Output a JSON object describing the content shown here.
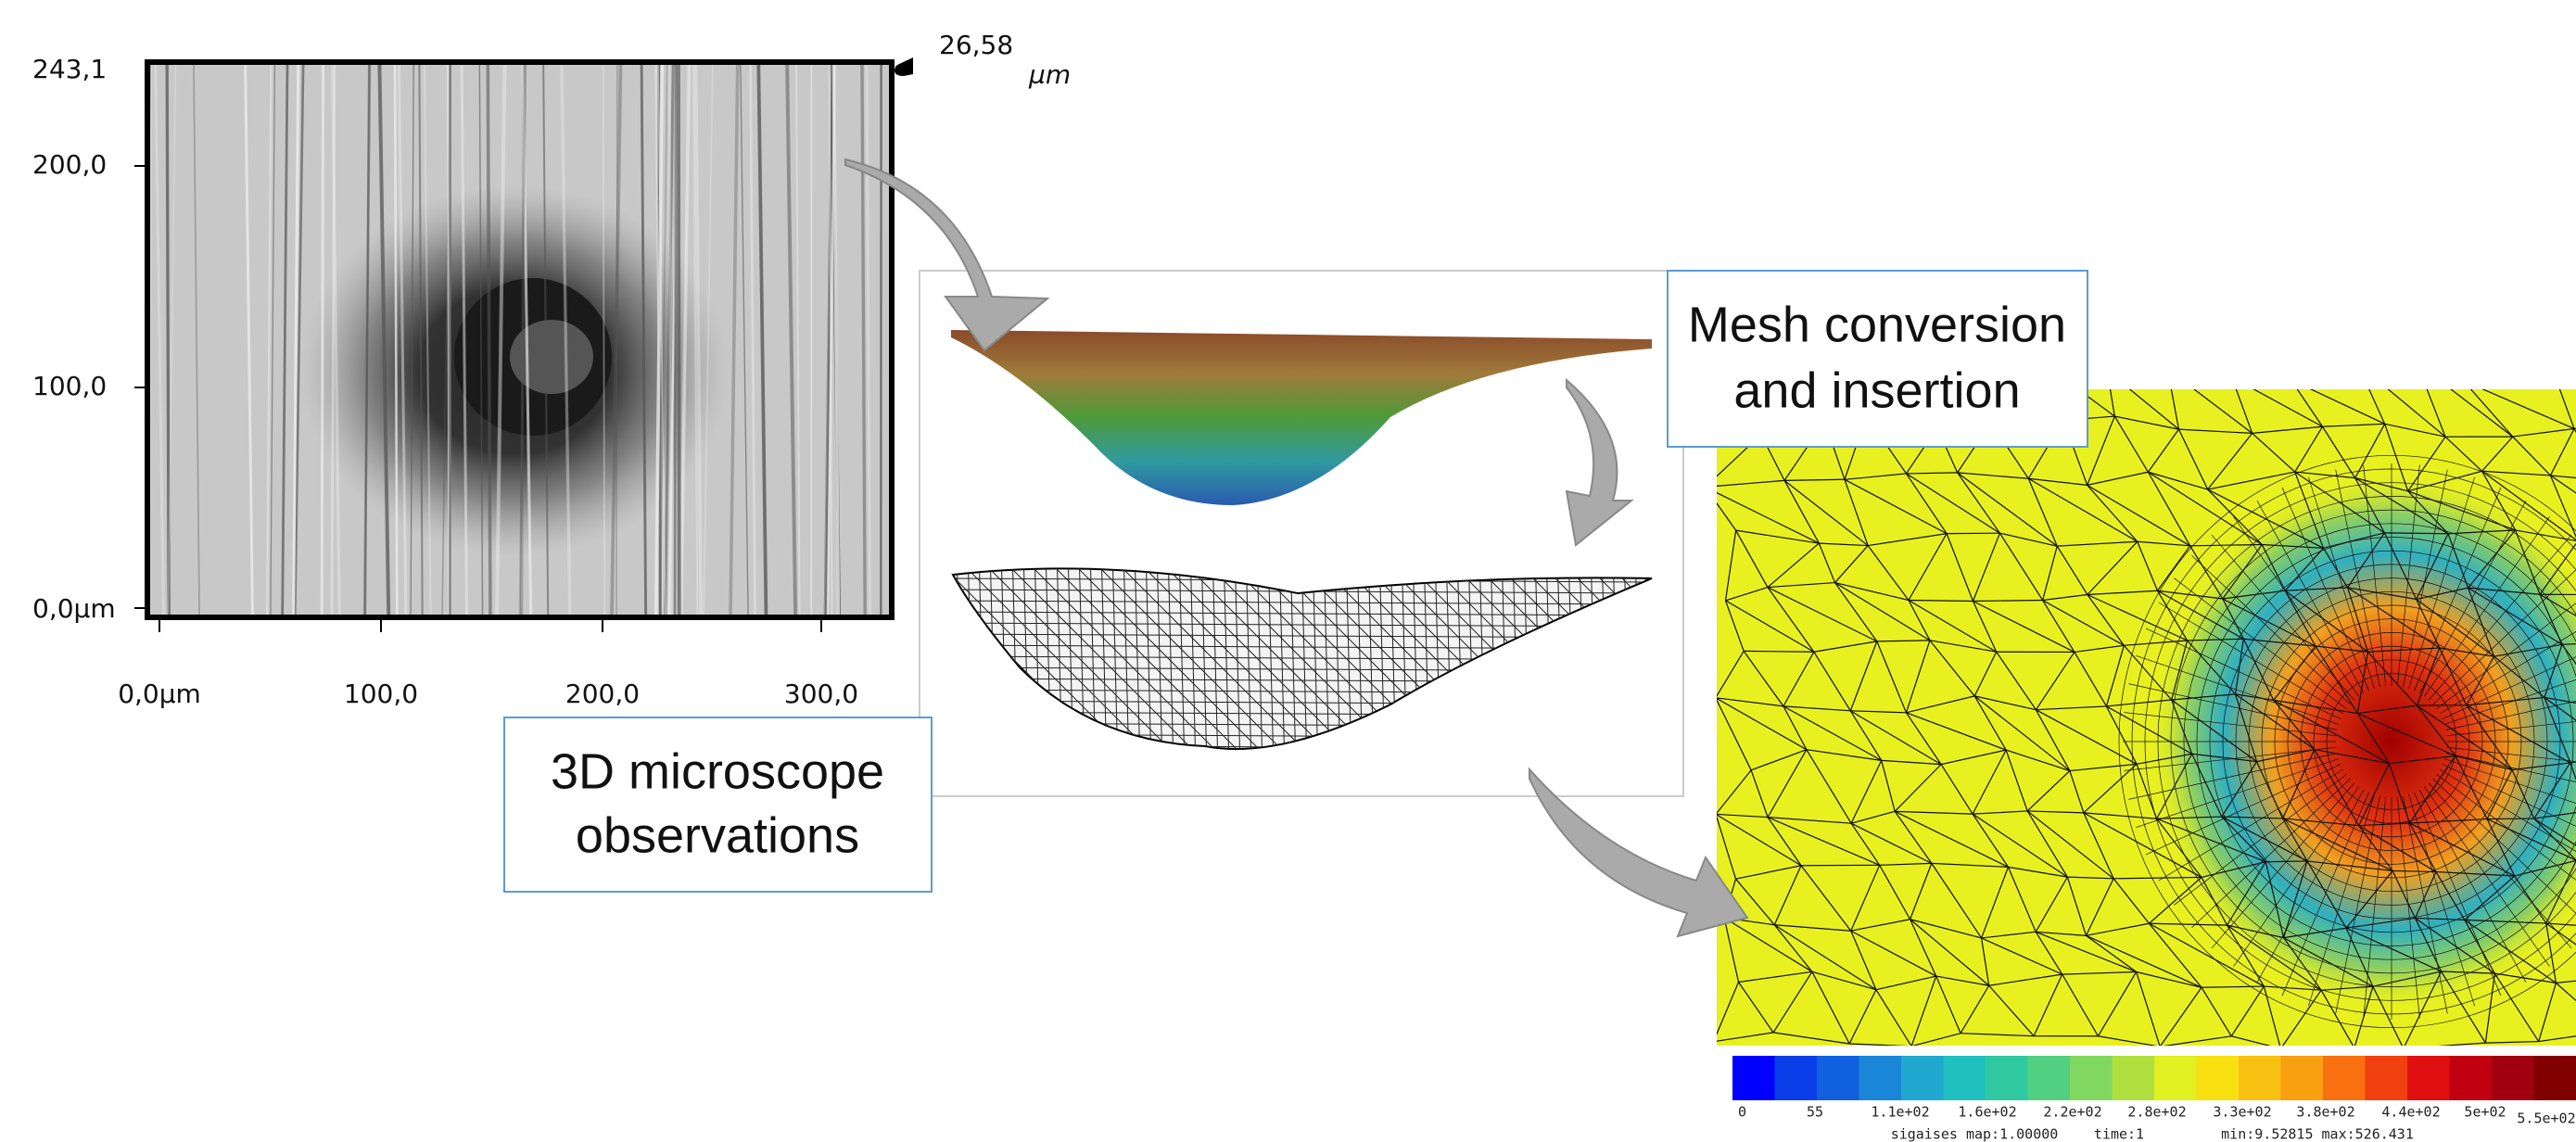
{
  "microscope": {
    "y_labels": [
      "243,1",
      "200,0",
      "100,0",
      "0,0µm"
    ],
    "x_labels": [
      "0,0µm",
      "100,0",
      "200,0",
      "300,0"
    ],
    "depth_max": "26,58",
    "depth_unit": "µm"
  },
  "labels": {
    "mesh_conversion": [
      "Mesh conversion",
      "and insertion"
    ],
    "observations": [
      "3D microscope",
      "observations"
    ]
  },
  "simulation": {
    "colorbar_labels": [
      "0",
      "55",
      "1.1e+02",
      "1.6e+02",
      "2.2e+02",
      "2.8e+02",
      "3.3e+02",
      "3.8e+02",
      "4.4e+02",
      "5e+02",
      "5.5e+02"
    ],
    "footer": [
      "sigaises map:1.00000",
      "time:1",
      "min:9.52815 max:526.431"
    ]
  }
}
